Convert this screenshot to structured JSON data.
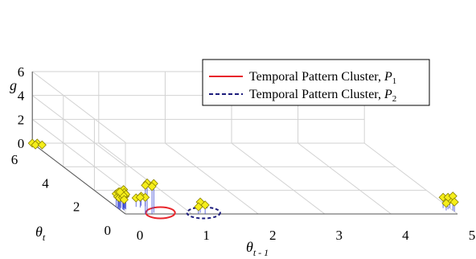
{
  "chart_data": {
    "type": "scatter",
    "projection": "3d",
    "title": "",
    "axes": {
      "x": {
        "label": "θ",
        "subscript": "t - 1",
        "ticks": [
          "0",
          "1",
          "2",
          "3",
          "4",
          "5"
        ],
        "range": [
          0,
          5
        ]
      },
      "y": {
        "label": "θ",
        "subscript": "t",
        "ticks": [
          "0",
          "2",
          "4",
          "6"
        ],
        "range": [
          0,
          6
        ]
      },
      "z": {
        "label": "g",
        "ticks": [
          "0",
          "2",
          "4",
          "6"
        ],
        "range": [
          0,
          6
        ]
      }
    },
    "grid": true,
    "legend": {
      "placement": "top-right",
      "entries": [
        {
          "text": "Temporal Pattern Cluster, ",
          "symbol": "P",
          "sub": "1",
          "style": "solid",
          "color": "#e8252b"
        },
        {
          "text": "Temporal Pattern Cluster, ",
          "symbol": "P",
          "sub": "2",
          "style": "dashed",
          "color": "#1c1c7c"
        }
      ]
    },
    "marker": {
      "shape": "diamond",
      "fill": "#f5ee1a",
      "stroke": "#8c8300"
    },
    "stem_color": "#3f4bd6",
    "points": [
      [
        0.0,
        0.4,
        0.95
      ],
      [
        0.05,
        0.5,
        1.05
      ],
      [
        0.1,
        0.4,
        1.25
      ],
      [
        0.0,
        0.6,
        1.1
      ],
      [
        0.05,
        0.3,
        0.9
      ],
      [
        0.0,
        0.45,
        1.4
      ],
      [
        0.1,
        0.55,
        1.5
      ],
      [
        0.05,
        0.35,
        1.2
      ],
      [
        0.0,
        0.5,
        0.95
      ],
      [
        0.1,
        0.45,
        1.05
      ],
      [
        0.05,
        0.6,
        1.25
      ],
      [
        0.0,
        0.35,
        1.5
      ],
      [
        0.05,
        0.4,
        1.0
      ],
      [
        0.1,
        0.5,
        1.3
      ],
      [
        0.3,
        0.6,
        0.75
      ],
      [
        0.4,
        0.7,
        0.8
      ],
      [
        0.35,
        0.55,
        0.85
      ],
      [
        0.45,
        0.65,
        0.75
      ],
      [
        0.3,
        0.0,
        2.4
      ],
      [
        0.35,
        0.1,
        2.5
      ],
      [
        0.4,
        0.0,
        2.3
      ],
      [
        0.45,
        0.1,
        2.45
      ],
      [
        1.1,
        0.0,
        0.6
      ],
      [
        1.15,
        0.1,
        0.9
      ],
      [
        1.2,
        0.0,
        0.75
      ],
      [
        4.9,
        0.3,
        0.6
      ],
      [
        5.0,
        0.2,
        0.8
      ],
      [
        4.95,
        0.4,
        1.0
      ],
      [
        5.0,
        0.3,
        1.2
      ],
      [
        4.9,
        0.5,
        0.9
      ],
      [
        5.0,
        0.5,
        0.7
      ],
      [
        0.0,
        5.8,
        0.05
      ],
      [
        0.05,
        5.9,
        0.1
      ],
      [
        0.0,
        6.0,
        0.0
      ],
      [
        0.1,
        5.8,
        0.05
      ]
    ],
    "clusters": [
      {
        "name": "P1",
        "center": [
          0.55,
          0.1
        ],
        "rx": 0.22,
        "style": "solid",
        "color": "#e8252b"
      },
      {
        "name": "P2",
        "center": [
          1.2,
          0.1
        ],
        "rx": 0.25,
        "style": "dashed",
        "color": "#1c1c7c"
      }
    ]
  }
}
